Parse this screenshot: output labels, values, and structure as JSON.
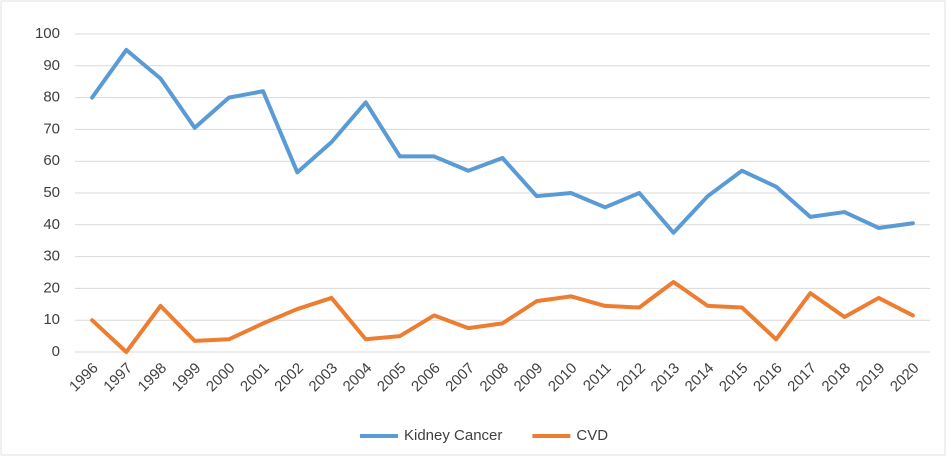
{
  "chart_data": {
    "type": "line",
    "categories": [
      "1996",
      "1997",
      "1998",
      "1999",
      "2000",
      "2001",
      "2002",
      "2003",
      "2004",
      "2005",
      "2006",
      "2007",
      "2008",
      "2009",
      "2010",
      "2011",
      "2012",
      "2013",
      "2014",
      "2015",
      "2016",
      "2017",
      "2018",
      "2019",
      "2020"
    ],
    "series": [
      {
        "name": "Kidney Cancer",
        "color": "#5b9bd5",
        "values": [
          80,
          95,
          86,
          70.5,
          80,
          82,
          56.5,
          66,
          78.5,
          61.5,
          61.5,
          57,
          61,
          49,
          50,
          45.5,
          50,
          37.5,
          49,
          57,
          52,
          42.5,
          44,
          39,
          40.5
        ]
      },
      {
        "name": "CVD",
        "color": "#ed7d31",
        "values": [
          10,
          0,
          14.5,
          3.5,
          4,
          9,
          13.5,
          17,
          4,
          5,
          11.5,
          7.5,
          9,
          16,
          17.5,
          14.5,
          14,
          22,
          14.5,
          14,
          4,
          18.5,
          11,
          17,
          11.5
        ]
      }
    ],
    "ylim": [
      0,
      100
    ],
    "yticks": [
      0,
      10,
      20,
      30,
      40,
      50,
      60,
      70,
      80,
      90,
      100
    ],
    "grid": true,
    "legend": "bottom"
  }
}
